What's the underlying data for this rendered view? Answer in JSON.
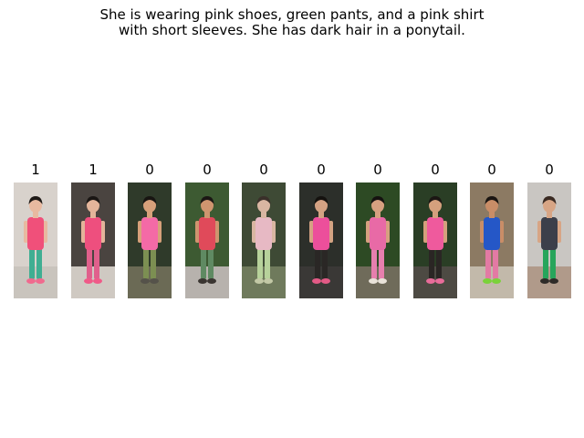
{
  "query": {
    "line1": "She is wearing pink shoes, green pants, and a pink shirt",
    "line2": "with short sleeves. She has dark hair in a ponytail."
  },
  "results": [
    {
      "label": "1",
      "bg": "#d8d2cc",
      "ground": "#c9c4bd",
      "hair": "#1f1a17",
      "skin": "#e8b9a0",
      "shirt": "#f0507a",
      "pants": "#3fae92",
      "shoes": "#f06a8e"
    },
    {
      "label": "1",
      "bg": "#4a4440",
      "ground": "#cfc9c2",
      "hair": "#1a1614",
      "skin": "#e3b49a",
      "shirt": "#ee4f7e",
      "pants": "#e0608c",
      "shoes": "#f05a88"
    },
    {
      "label": "0",
      "bg": "#2f3a2a",
      "ground": "#6b6a55",
      "hair": "#181512",
      "skin": "#d7a07a",
      "shirt": "#f46aa6",
      "pants": "#7c8f52",
      "shoes": "#55524a"
    },
    {
      "label": "0",
      "bg": "#3d5a32",
      "ground": "#b7b2ad",
      "hair": "#1b1714",
      "skin": "#cf956f",
      "shirt": "#e04a5a",
      "pants": "#5f8a62",
      "shoes": "#3a3531"
    },
    {
      "label": "0",
      "bg": "#3e4a35",
      "ground": "#6f7a5c",
      "hair": "#3a302a",
      "skin": "#d9b6a2",
      "shirt": "#e7b9c4",
      "pants": "#b7d29b",
      "shoes": "#c3c9a6"
    },
    {
      "label": "0",
      "bg": "#2c2f2a",
      "ground": "#3a3836",
      "hair": "#15120f",
      "skin": "#d4a283",
      "shirt": "#ec4f9b",
      "pants": "#2a2725",
      "shoes": "#e35a86"
    },
    {
      "label": "0",
      "bg": "#2d4a24",
      "ground": "#6f6b5a",
      "hair": "#151210",
      "skin": "#d6a080",
      "shirt": "#e86aa6",
      "pants": "#e77fae",
      "shoes": "#e9e3d9"
    },
    {
      "label": "0",
      "bg": "#2a3e25",
      "ground": "#4d4a43",
      "hair": "#1c1714",
      "skin": "#d5a07d",
      "shirt": "#ef5a9d",
      "pants": "#2a2624",
      "shoes": "#e86c9a"
    },
    {
      "label": "0",
      "bg": "#8c7a63",
      "ground": "#c2b9aa",
      "hair": "#1a1512",
      "skin": "#c98d67",
      "shirt": "#2557c7",
      "pants": "#e37aa4",
      "shoes": "#7ad23a"
    },
    {
      "label": "0",
      "bg": "#c9c6c2",
      "ground": "#b09a8a",
      "hair": "#3a2a22",
      "skin": "#d7a585",
      "shirt": "#3c3f4a",
      "pants": "#27a55b",
      "shoes": "#2e2b28"
    }
  ]
}
